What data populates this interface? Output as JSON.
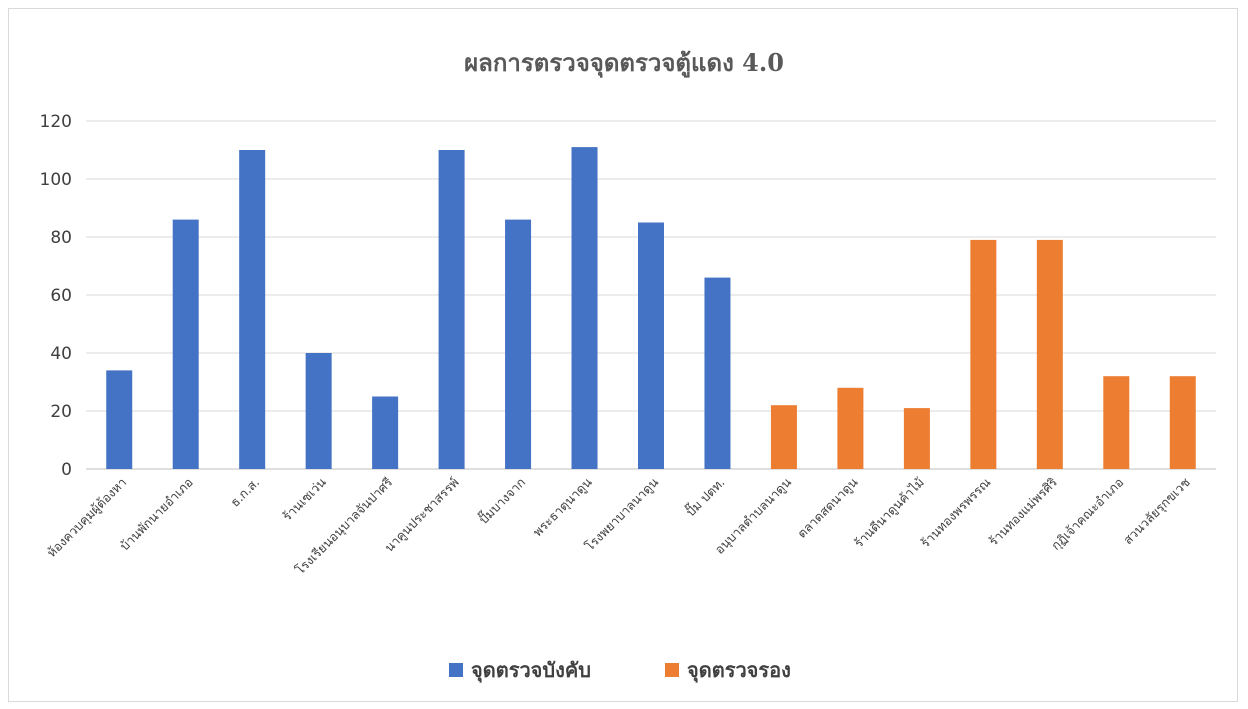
{
  "chart_data": {
    "type": "bar",
    "title": "ผลการตรวจจุดตรวจตู้แดง 4.0",
    "xlabel": "",
    "ylabel": "",
    "ylim": [
      0,
      120
    ],
    "yticks": [
      0,
      20,
      40,
      60,
      80,
      100,
      120
    ],
    "grid": true,
    "legend_position": "bottom",
    "categories": [
      "ห้องควบคุมผู้ต้องหา",
      "บ้านพักนายอำเภอ",
      "ธ.ก.ส.",
      "ร้านเซเว่น",
      "โรงเรียนอนุบาลจันปาศรี",
      "นาคูนประชาสรรพ์",
      "ปั๊มบางจาก",
      "พระธาตุนาดูน",
      "โรงพยาบาลนาดูน",
      "ปั๊ม ปตท.",
      "อนุบาลตำบลนาดูน",
      "ตลาดสดนาดูน",
      "ร้านดีนาดูนค้าไม้",
      "ร้านทองพรพรรณ",
      "ร้านทองแม่พรศิริ",
      "กุฏิเจ้าคณะอำเภอ",
      "สวนวลัยรุกขเวช"
    ],
    "series": [
      {
        "name": "จุดตรวจบังคับ",
        "color": "#4472c4",
        "values": [
          34,
          86,
          110,
          40,
          25,
          110,
          86,
          111,
          85,
          66,
          null,
          null,
          null,
          null,
          null,
          null,
          null
        ]
      },
      {
        "name": "จุดตรวจรอง",
        "color": "#ed7d31",
        "values": [
          null,
          null,
          null,
          null,
          null,
          null,
          null,
          null,
          null,
          null,
          22,
          28,
          21,
          79,
          79,
          32,
          32
        ]
      }
    ]
  }
}
